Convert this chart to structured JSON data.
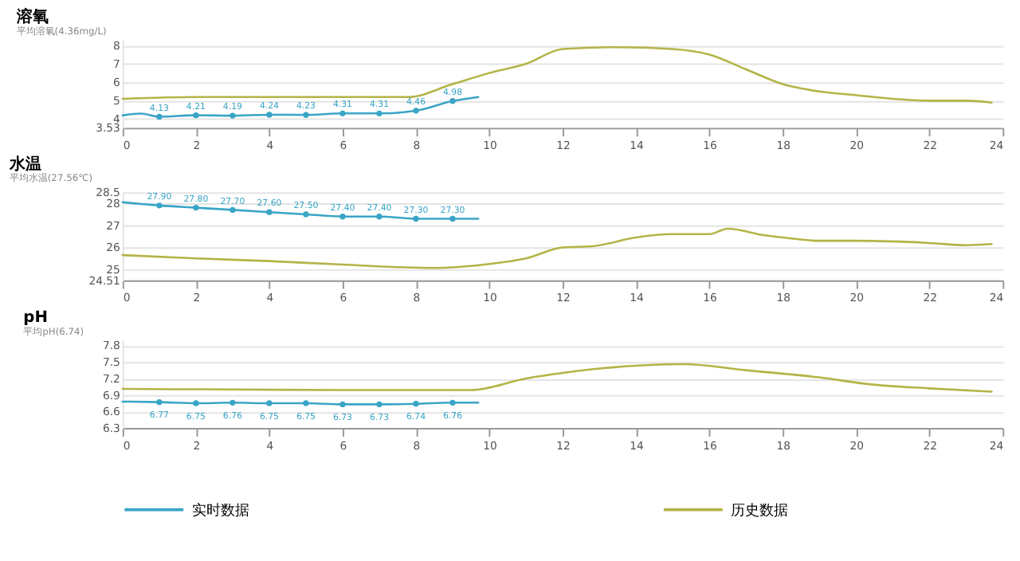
{
  "chart_data": [
    {
      "type": "line",
      "title": "溶氧",
      "subtitle": "平均溶氧(4.36mg/L)",
      "xlim": [
        0,
        24
      ],
      "xticks": [
        0,
        2,
        4,
        6,
        8,
        10,
        12,
        14,
        16,
        18,
        20,
        22,
        24
      ],
      "ylim": [
        3.53,
        8.3
      ],
      "yticks": [
        3.53,
        4,
        5,
        6,
        7,
        8
      ],
      "grid": "y",
      "legend": "bottom",
      "series": [
        {
          "name": "实时数据",
          "color": "#3aa5c6",
          "marker": "circle",
          "x": [
            0,
            0.5,
            1,
            2,
            3,
            4,
            5,
            6,
            7,
            8,
            9,
            9.7
          ],
          "values": [
            4.2,
            4.3,
            4.13,
            4.21,
            4.19,
            4.24,
            4.23,
            4.31,
            4.31,
            4.46,
            4.98,
            5.2
          ],
          "value_labels": [
            null,
            null,
            "4.13",
            "4.21",
            "4.19",
            "4.24",
            "4.23",
            "4.31",
            "4.31",
            "4.46",
            "4.98",
            null
          ]
        },
        {
          "name": "历史数据",
          "color": "#b3b446",
          "x": [
            0,
            2,
            4,
            6,
            7.8,
            9,
            10,
            11,
            12,
            13.5,
            15,
            16,
            17,
            18,
            19,
            20,
            21,
            22,
            23,
            23.7
          ],
          "values": [
            5.1,
            5.2,
            5.2,
            5.2,
            5.2,
            5.9,
            6.5,
            7.0,
            7.8,
            7.9,
            7.8,
            7.5,
            6.7,
            5.9,
            5.5,
            5.3,
            5.1,
            5.0,
            5.0,
            4.9
          ]
        }
      ]
    },
    {
      "type": "line",
      "title": "水温",
      "subtitle": "平均水温(27.56℃)",
      "xlim": [
        0,
        24
      ],
      "xticks": [
        0,
        2,
        4,
        6,
        8,
        10,
        12,
        14,
        16,
        18,
        20,
        22,
        24
      ],
      "ylim": [
        24.51,
        28.5
      ],
      "yticks": [
        24.51,
        25,
        26,
        27,
        28,
        28.5
      ],
      "grid": "y",
      "legend": "bottom",
      "series": [
        {
          "name": "实时数据",
          "color": "#3aa5c6",
          "marker": "circle",
          "x": [
            0,
            1,
            2,
            3,
            4,
            5,
            6,
            7,
            8,
            9,
            9.7
          ],
          "values": [
            28.05,
            27.9,
            27.8,
            27.7,
            27.6,
            27.5,
            27.4,
            27.4,
            27.3,
            27.3,
            27.3
          ],
          "value_labels": [
            null,
            "27.90",
            "27.80",
            "27.70",
            "27.60",
            "27.50",
            "27.40",
            "27.40",
            "27.30",
            "27.30",
            null
          ]
        },
        {
          "name": "历史数据",
          "color": "#b3b446",
          "x": [
            0,
            2,
            4,
            6,
            8.5,
            10,
            11,
            12,
            12.8,
            14,
            15,
            16,
            16.5,
            17.5,
            18,
            19,
            20,
            22,
            23,
            23.7
          ],
          "values": [
            25.65,
            25.5,
            25.38,
            25.22,
            25.07,
            25.25,
            25.5,
            26.0,
            26.05,
            26.45,
            26.6,
            26.6,
            26.85,
            26.55,
            26.45,
            26.3,
            26.3,
            26.2,
            26.1,
            26.15
          ]
        }
      ]
    },
    {
      "type": "line",
      "title": "pH",
      "subtitle": "平均pH(6.74)",
      "xlim": [
        0,
        24
      ],
      "xticks": [
        0,
        2,
        4,
        6,
        8,
        10,
        12,
        14,
        16,
        18,
        20,
        22,
        24
      ],
      "ylim": [
        6.3,
        7.9
      ],
      "yticks": [
        6.3,
        6.6,
        6.9,
        7.2,
        7.5,
        7.8
      ],
      "grid": "y",
      "legend": "bottom",
      "series": [
        {
          "name": "实时数据",
          "color": "#3aa5c6",
          "marker": "circle",
          "x": [
            0,
            1,
            2,
            3,
            4,
            5,
            6,
            7,
            8,
            9,
            9.7
          ],
          "values": [
            6.78,
            6.77,
            6.75,
            6.76,
            6.75,
            6.75,
            6.73,
            6.73,
            6.74,
            6.76,
            6.76
          ],
          "value_labels": [
            null,
            "6.77",
            "6.75",
            "6.76",
            "6.75",
            "6.75",
            "6.73",
            "6.73",
            "6.74",
            "6.76",
            null
          ]
        },
        {
          "name": "历史数据",
          "color": "#b3b446",
          "x": [
            0,
            3,
            6,
            9.5,
            11,
            12,
            13,
            15.3,
            17,
            19,
            20.3,
            22,
            23.7
          ],
          "values": [
            7.01,
            7.0,
            6.99,
            6.99,
            7.2,
            7.3,
            7.38,
            7.46,
            7.35,
            7.22,
            7.1,
            7.02,
            6.96
          ]
        }
      ]
    }
  ]
}
